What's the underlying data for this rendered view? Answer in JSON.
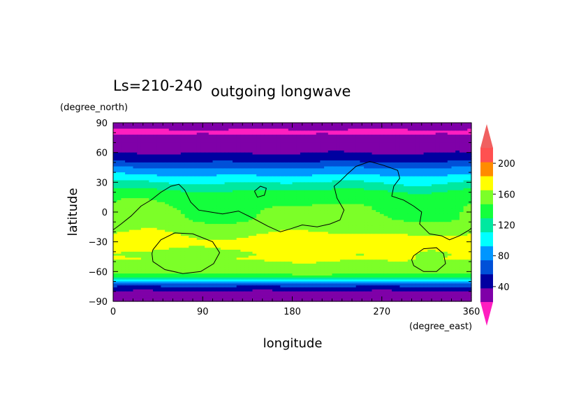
{
  "chart_data": {
    "type": "heatmap",
    "title": "outgoing longwave",
    "subtitle": "Ls=210-240",
    "xlabel": "longitude",
    "ylabel": "latitude",
    "x_unit": "(degree_east)",
    "y_unit": "(degree_north)",
    "xlim": [
      0,
      360
    ],
    "ylim": [
      -90,
      90
    ],
    "x_ticks": [
      0,
      90,
      180,
      270,
      360
    ],
    "x_tick_labels": [
      "0",
      "90",
      "180",
      "270",
      "360"
    ],
    "y_ticks": [
      90,
      60,
      30,
      0,
      -30,
      -60,
      -90
    ],
    "y_tick_labels": [
      "90",
      "60",
      "30",
      "0",
      "−30",
      "−60",
      "−90"
    ],
    "colorbar": {
      "levels": [
        20,
        40,
        60,
        80,
        100,
        120,
        140,
        160,
        180,
        200,
        220
      ],
      "colors": [
        "#7f00a8",
        "#0000a0",
        "#0050d8",
        "#0096ff",
        "#00ffff",
        "#00e8a0",
        "#14ff3c",
        "#7cff28",
        "#ffff00",
        "#ff8c00",
        "#ff5050"
      ],
      "under_color": "#ff1ec0",
      "over_color": "#f06060",
      "tick_values": [
        40,
        80,
        120,
        160,
        200
      ],
      "tick_labels": [
        "40",
        "80",
        "120",
        "160",
        "200"
      ]
    },
    "lat_profile": {
      "lat": [
        -90,
        -82,
        -76,
        -72,
        -69,
        -67,
        -65,
        -62,
        -58,
        -52,
        -47,
        -42,
        -36,
        -30,
        -22,
        -14,
        -8,
        0,
        6,
        12,
        17,
        22,
        27,
        32,
        37,
        42,
        47,
        52,
        57,
        62,
        70,
        76,
        81,
        85,
        90
      ],
      "olr": [
        35,
        30,
        55,
        80,
        105,
        125,
        145,
        165,
        170,
        175,
        185,
        182,
        189,
        190,
        180,
        170,
        162,
        160,
        158,
        154,
        150,
        140,
        125,
        115,
        100,
        90,
        70,
        55,
        45,
        35,
        30,
        28,
        10,
        30,
        30
      ]
    },
    "contours": [
      [
        [
          0,
          -18
        ],
        [
          8,
          -12
        ],
        [
          18,
          -4
        ],
        [
          28,
          6
        ],
        [
          38,
          12
        ],
        [
          48,
          20
        ],
        [
          58,
          26
        ],
        [
          66,
          28
        ],
        [
          72,
          22
        ],
        [
          78,
          10
        ],
        [
          86,
          2
        ],
        [
          98,
          0
        ],
        [
          110,
          -2
        ],
        [
          126,
          1
        ],
        [
          140,
          -6
        ],
        [
          155,
          -14
        ],
        [
          168,
          -20
        ],
        [
          178,
          -17
        ],
        [
          190,
          -13
        ],
        [
          205,
          -15
        ],
        [
          218,
          -12
        ],
        [
          228,
          -8
        ],
        [
          232,
          2
        ],
        [
          225,
          14
        ],
        [
          222,
          26
        ],
        [
          228,
          31
        ],
        [
          235,
          38
        ],
        [
          244,
          46
        ],
        [
          258,
          51
        ],
        [
          272,
          47
        ],
        [
          286,
          42
        ],
        [
          288,
          34
        ],
        [
          282,
          26
        ],
        [
          280,
          16
        ],
        [
          292,
          12
        ],
        [
          302,
          6
        ],
        [
          310,
          0
        ],
        [
          308,
          -12
        ],
        [
          318,
          -22
        ],
        [
          330,
          -24
        ],
        [
          338,
          -28
        ],
        [
          348,
          -24
        ],
        [
          358,
          -18
        ],
        [
          360,
          -16
        ]
      ],
      [
        [
          142,
          21
        ],
        [
          148,
          26
        ],
        [
          154,
          24
        ],
        [
          152,
          17
        ],
        [
          145,
          15
        ],
        [
          142,
          21
        ]
      ],
      [
        [
          40,
          -38
        ],
        [
          48,
          -28
        ],
        [
          62,
          -21
        ],
        [
          80,
          -22
        ],
        [
          100,
          -30
        ],
        [
          107,
          -41
        ],
        [
          101,
          -52
        ],
        [
          88,
          -60
        ],
        [
          70,
          -62
        ],
        [
          52,
          -58
        ],
        [
          40,
          -50
        ],
        [
          39,
          -42
        ],
        [
          40,
          -38
        ]
      ],
      [
        [
          302,
          -44
        ],
        [
          312,
          -37
        ],
        [
          325,
          -36
        ],
        [
          332,
          -42
        ],
        [
          334,
          -52
        ],
        [
          325,
          -60
        ],
        [
          312,
          -60
        ],
        [
          302,
          -54
        ],
        [
          300,
          -48
        ],
        [
          302,
          -44
        ]
      ]
    ]
  }
}
